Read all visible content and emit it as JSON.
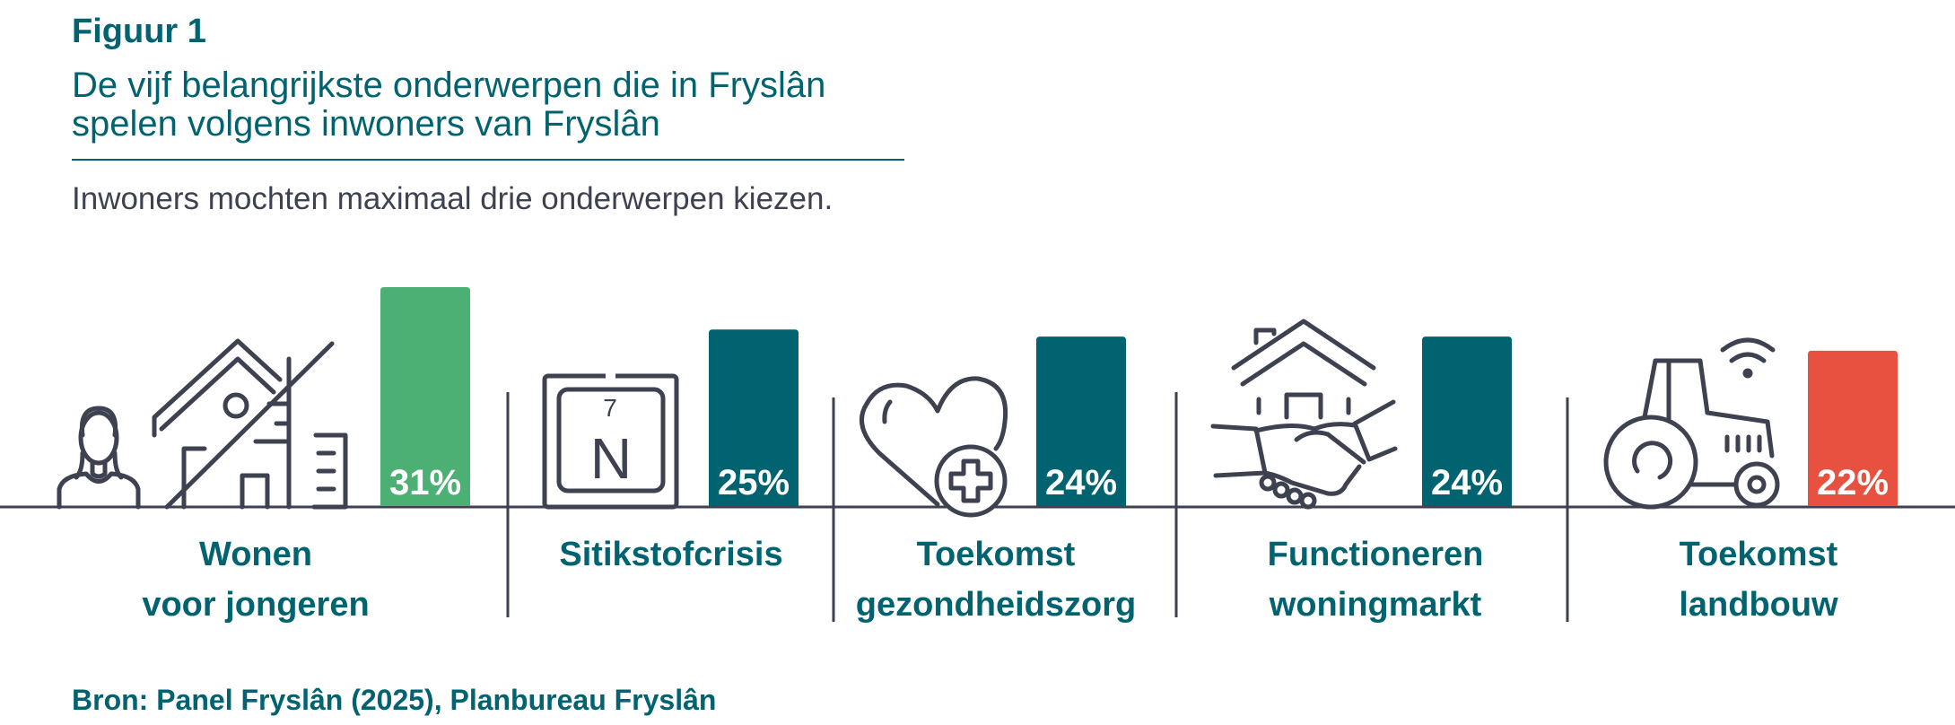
{
  "header": {
    "figure_label": "Figuur 1",
    "title_line1": "De vijf belangrijkste onderwerpen die in Fryslân",
    "title_line2": "spelen volgens inwoners van Fryslân",
    "subtitle": "Inwoners mochten maximaal drie onderwerpen kiezen."
  },
  "footer": {
    "source": "Bron: Panel Fryslân (2025), Planbureau Fryslân"
  },
  "icons": {
    "c1": [
      "person-icon",
      "housing-icon"
    ],
    "c2": [
      "nitrogen-element-icon"
    ],
    "c3": [
      "heart-health-icon"
    ],
    "c4": [
      "house-handshake-icon"
    ],
    "c5": [
      "smart-tractor-icon"
    ]
  },
  "chart_data": {
    "type": "bar",
    "categories": [
      [
        "Wonen",
        "voor jongeren"
      ],
      [
        "Sitikstofcrisis"
      ],
      [
        "Toekomst",
        "gezondheidszorg"
      ],
      [
        "Functioneren",
        "woningmarkt"
      ],
      [
        "Toekomst",
        "landbouw"
      ]
    ],
    "values": [
      31,
      25,
      24,
      24,
      22
    ],
    "value_labels": [
      "31%",
      "25%",
      "24%",
      "24%",
      "22%"
    ],
    "bar_colors": [
      "#4caf73",
      "#00636f",
      "#00636f",
      "#00636f",
      "#e8503f"
    ],
    "ylim": [
      0,
      31
    ],
    "grid": false,
    "legend": "none"
  }
}
